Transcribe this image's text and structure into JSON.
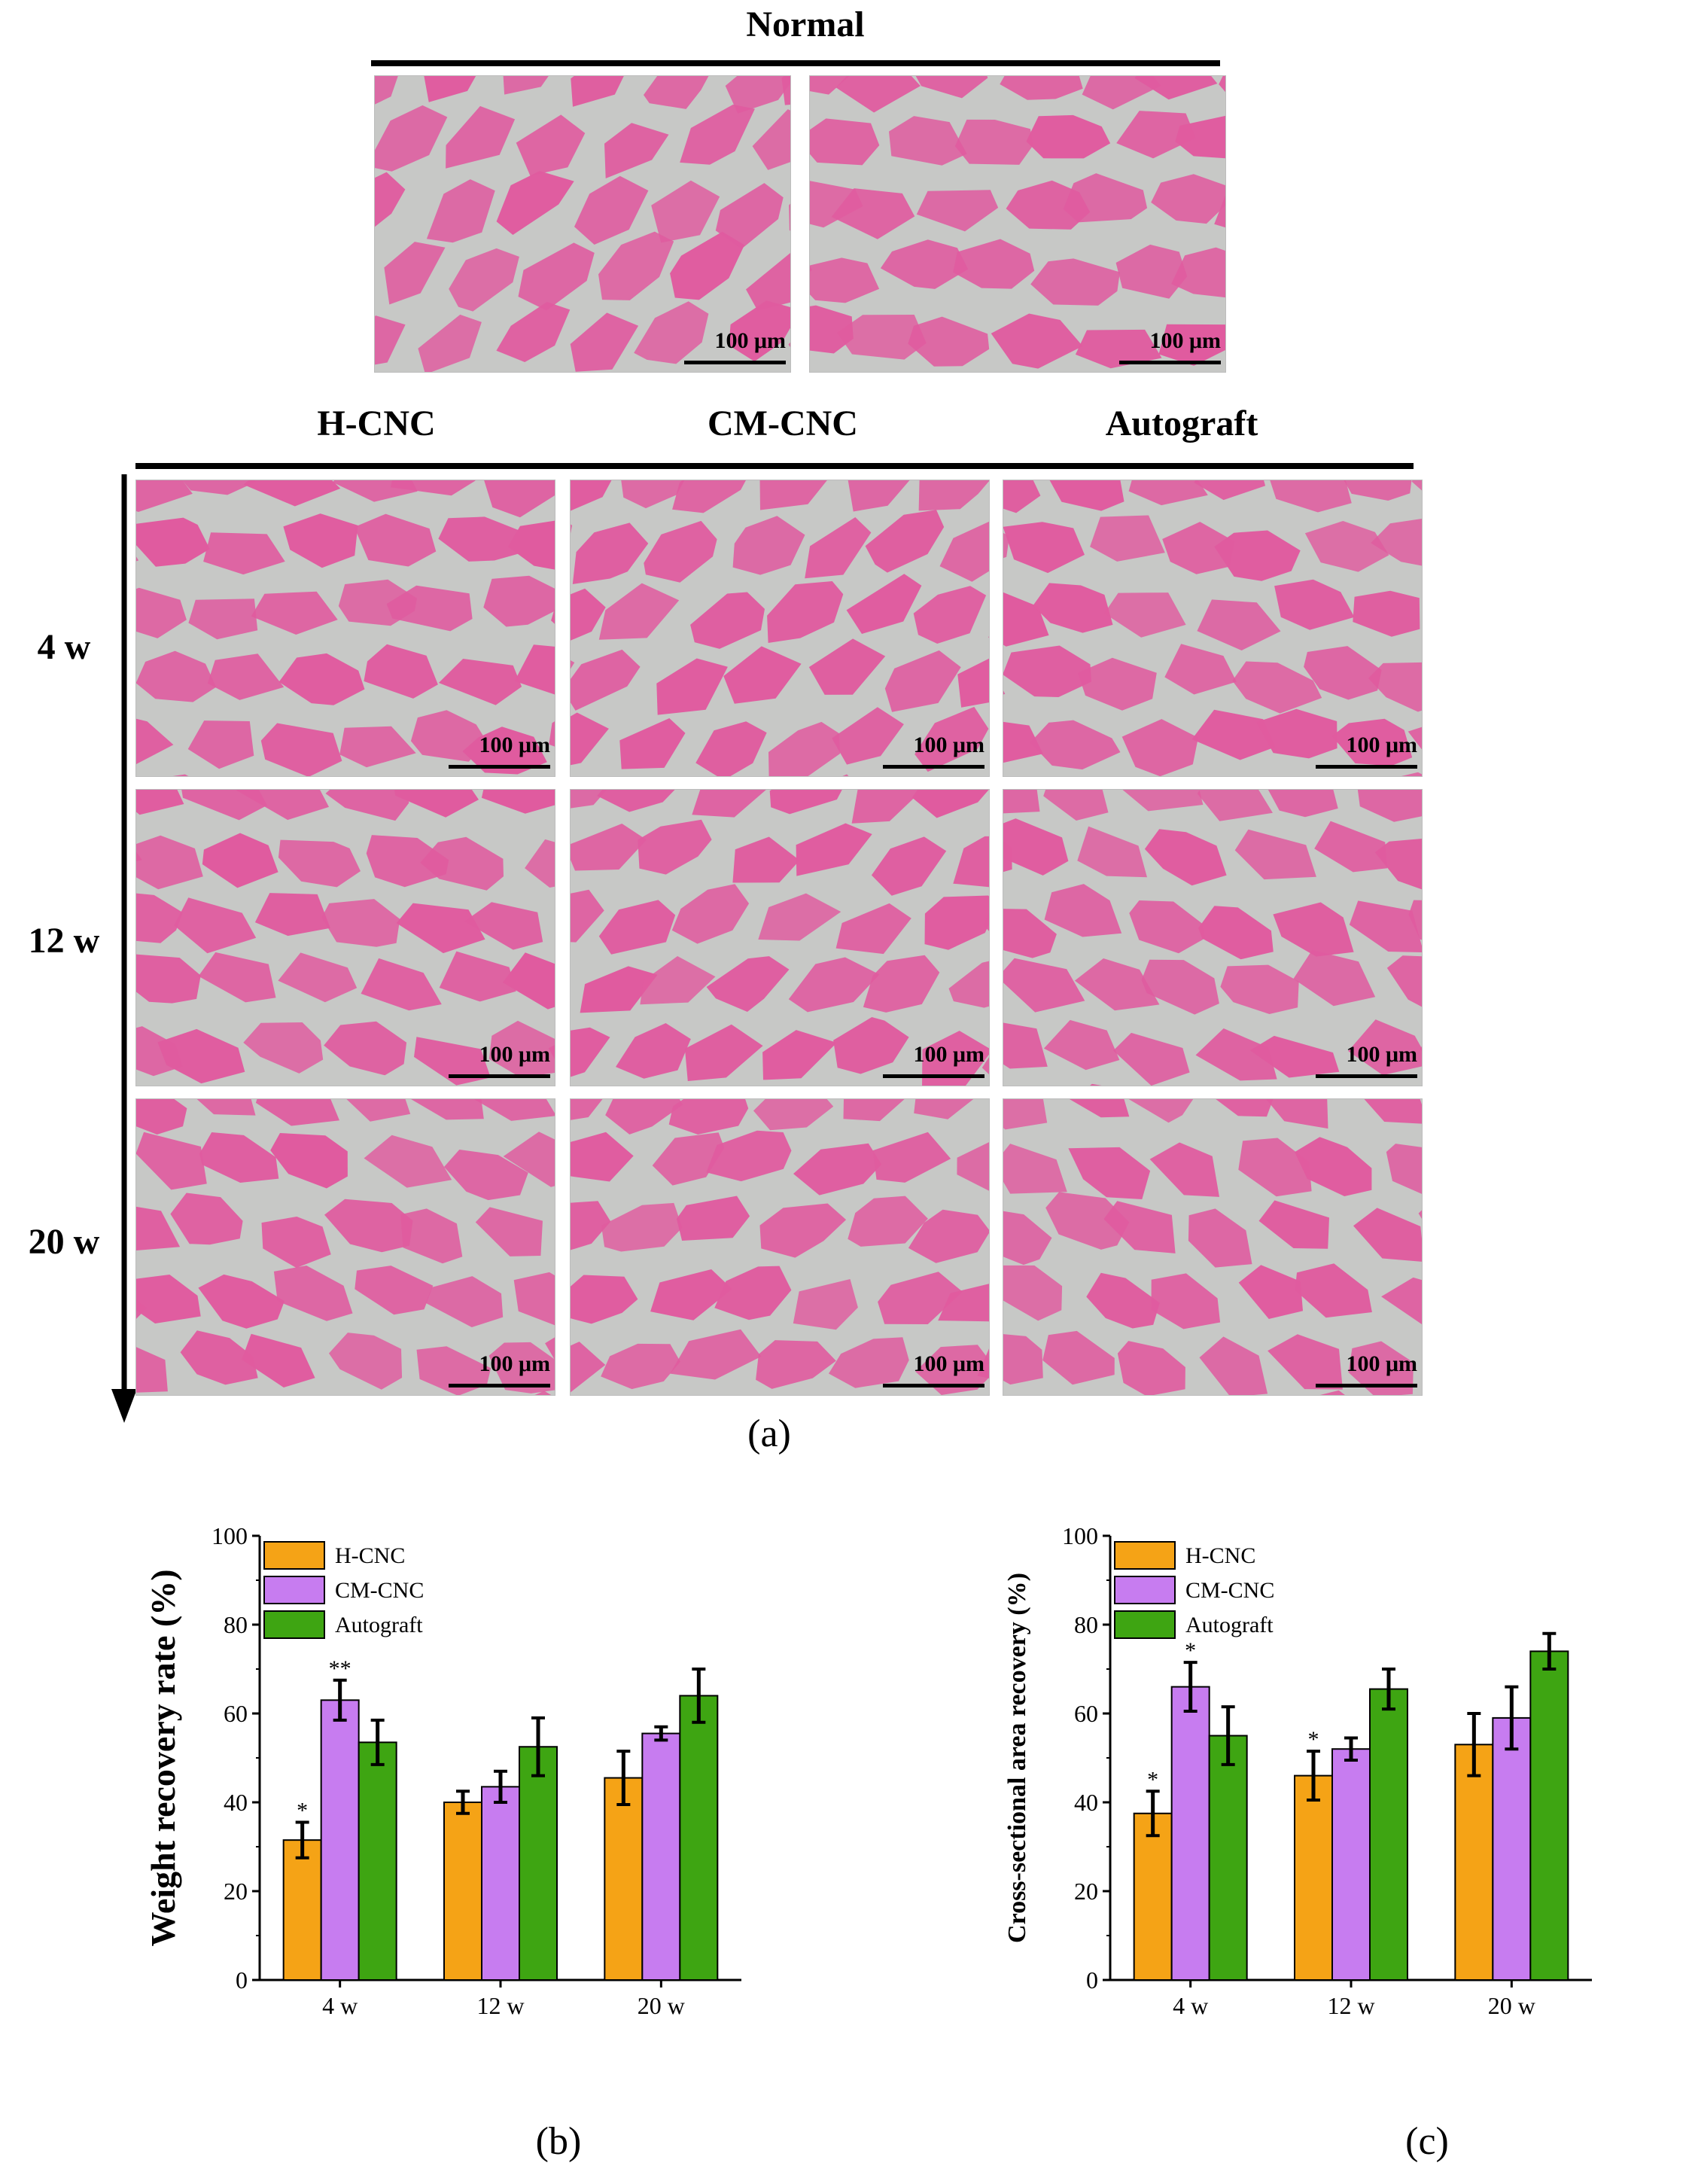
{
  "figure": {
    "normal_header": "Normal",
    "group_headers": [
      "H-CNC",
      "CM-CNC",
      "Autograft"
    ],
    "row_labels": [
      "4 w",
      "12 w",
      "20 w"
    ],
    "scale_bar_label": "100 μm",
    "panel_a": "(a)",
    "panel_b": "(b)",
    "panel_c": "(c)",
    "colors": {
      "tissue": "#e05b9f",
      "background": "#c7c8c6",
      "h_cnc": "#f5a316",
      "cm_cnc": "#c77cf0",
      "autograft": "#3ea512"
    }
  },
  "chart_data": [
    {
      "type": "bar",
      "title": "",
      "xlabel": "",
      "ylabel": "Weight recovery rate (%)",
      "ylim": [
        0,
        100
      ],
      "yticks": [
        0,
        20,
        40,
        60,
        80,
        100
      ],
      "categories": [
        "4 w",
        "12 w",
        "20 w"
      ],
      "series": [
        {
          "name": "H-CNC",
          "color": "#f5a316",
          "values": [
            31.5,
            40,
            45.5
          ],
          "errors": [
            4,
            2.5,
            6
          ],
          "annotations": [
            "*",
            "",
            ""
          ]
        },
        {
          "name": "CM-CNC",
          "color": "#c77cf0",
          "values": [
            63,
            43.5,
            55.5
          ],
          "errors": [
            4.5,
            3.5,
            1.5
          ],
          "annotations": [
            "**",
            "",
            ""
          ]
        },
        {
          "name": "Autograft",
          "color": "#3ea512",
          "values": [
            53.5,
            52.5,
            64
          ],
          "errors": [
            5,
            6.5,
            6
          ],
          "annotations": [
            "",
            "",
            ""
          ]
        }
      ],
      "legend": "top-left"
    },
    {
      "type": "bar",
      "title": "",
      "xlabel": "",
      "ylabel": "Cross-sectional area recovery (%)",
      "ylim": [
        0,
        100
      ],
      "yticks": [
        0,
        20,
        40,
        60,
        80,
        100
      ],
      "categories": [
        "4 w",
        "12 w",
        "20 w"
      ],
      "series": [
        {
          "name": "H-CNC",
          "color": "#f5a316",
          "values": [
            37.5,
            46,
            53
          ],
          "errors": [
            5,
            5.5,
            7
          ],
          "annotations": [
            "*",
            "*",
            ""
          ]
        },
        {
          "name": "CM-CNC",
          "color": "#c77cf0",
          "values": [
            66,
            52,
            59
          ],
          "errors": [
            5.5,
            2.5,
            7
          ],
          "annotations": [
            "*",
            "",
            ""
          ]
        },
        {
          "name": "Autograft",
          "color": "#3ea512",
          "values": [
            55,
            65.5,
            74
          ],
          "errors": [
            6.5,
            4.5,
            4
          ],
          "annotations": [
            "",
            "",
            ""
          ]
        }
      ],
      "legend": "top-left"
    }
  ]
}
